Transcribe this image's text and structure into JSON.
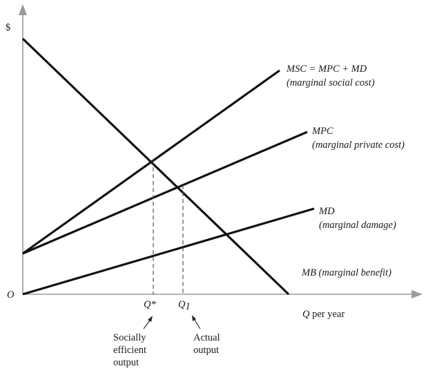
{
  "diagram": {
    "axes": {
      "y_label": "$",
      "origin_label": "O",
      "x_label_var": "Q",
      "x_label_rest": " per year"
    },
    "curves": {
      "msc": {
        "name": "MSC = MPC + MD",
        "desc": "(marginal social cost)"
      },
      "mpc": {
        "name": "MPC",
        "desc": "(marginal private cost)"
      },
      "md": {
        "name": "MD",
        "desc": "(marginal damage)"
      },
      "mb": {
        "name": "MB (marginal benefit)"
      }
    },
    "quantities": {
      "q_star": {
        "label": "Q*",
        "note_line1": "Socially",
        "note_line2": "efficient",
        "note_line3": "output"
      },
      "q1": {
        "label_var": "Q",
        "label_sub": "1",
        "note_line1": "Actual",
        "note_line2": "output"
      }
    },
    "colors": {
      "ink": "#111111",
      "axis": "#9a9a9a"
    }
  }
}
